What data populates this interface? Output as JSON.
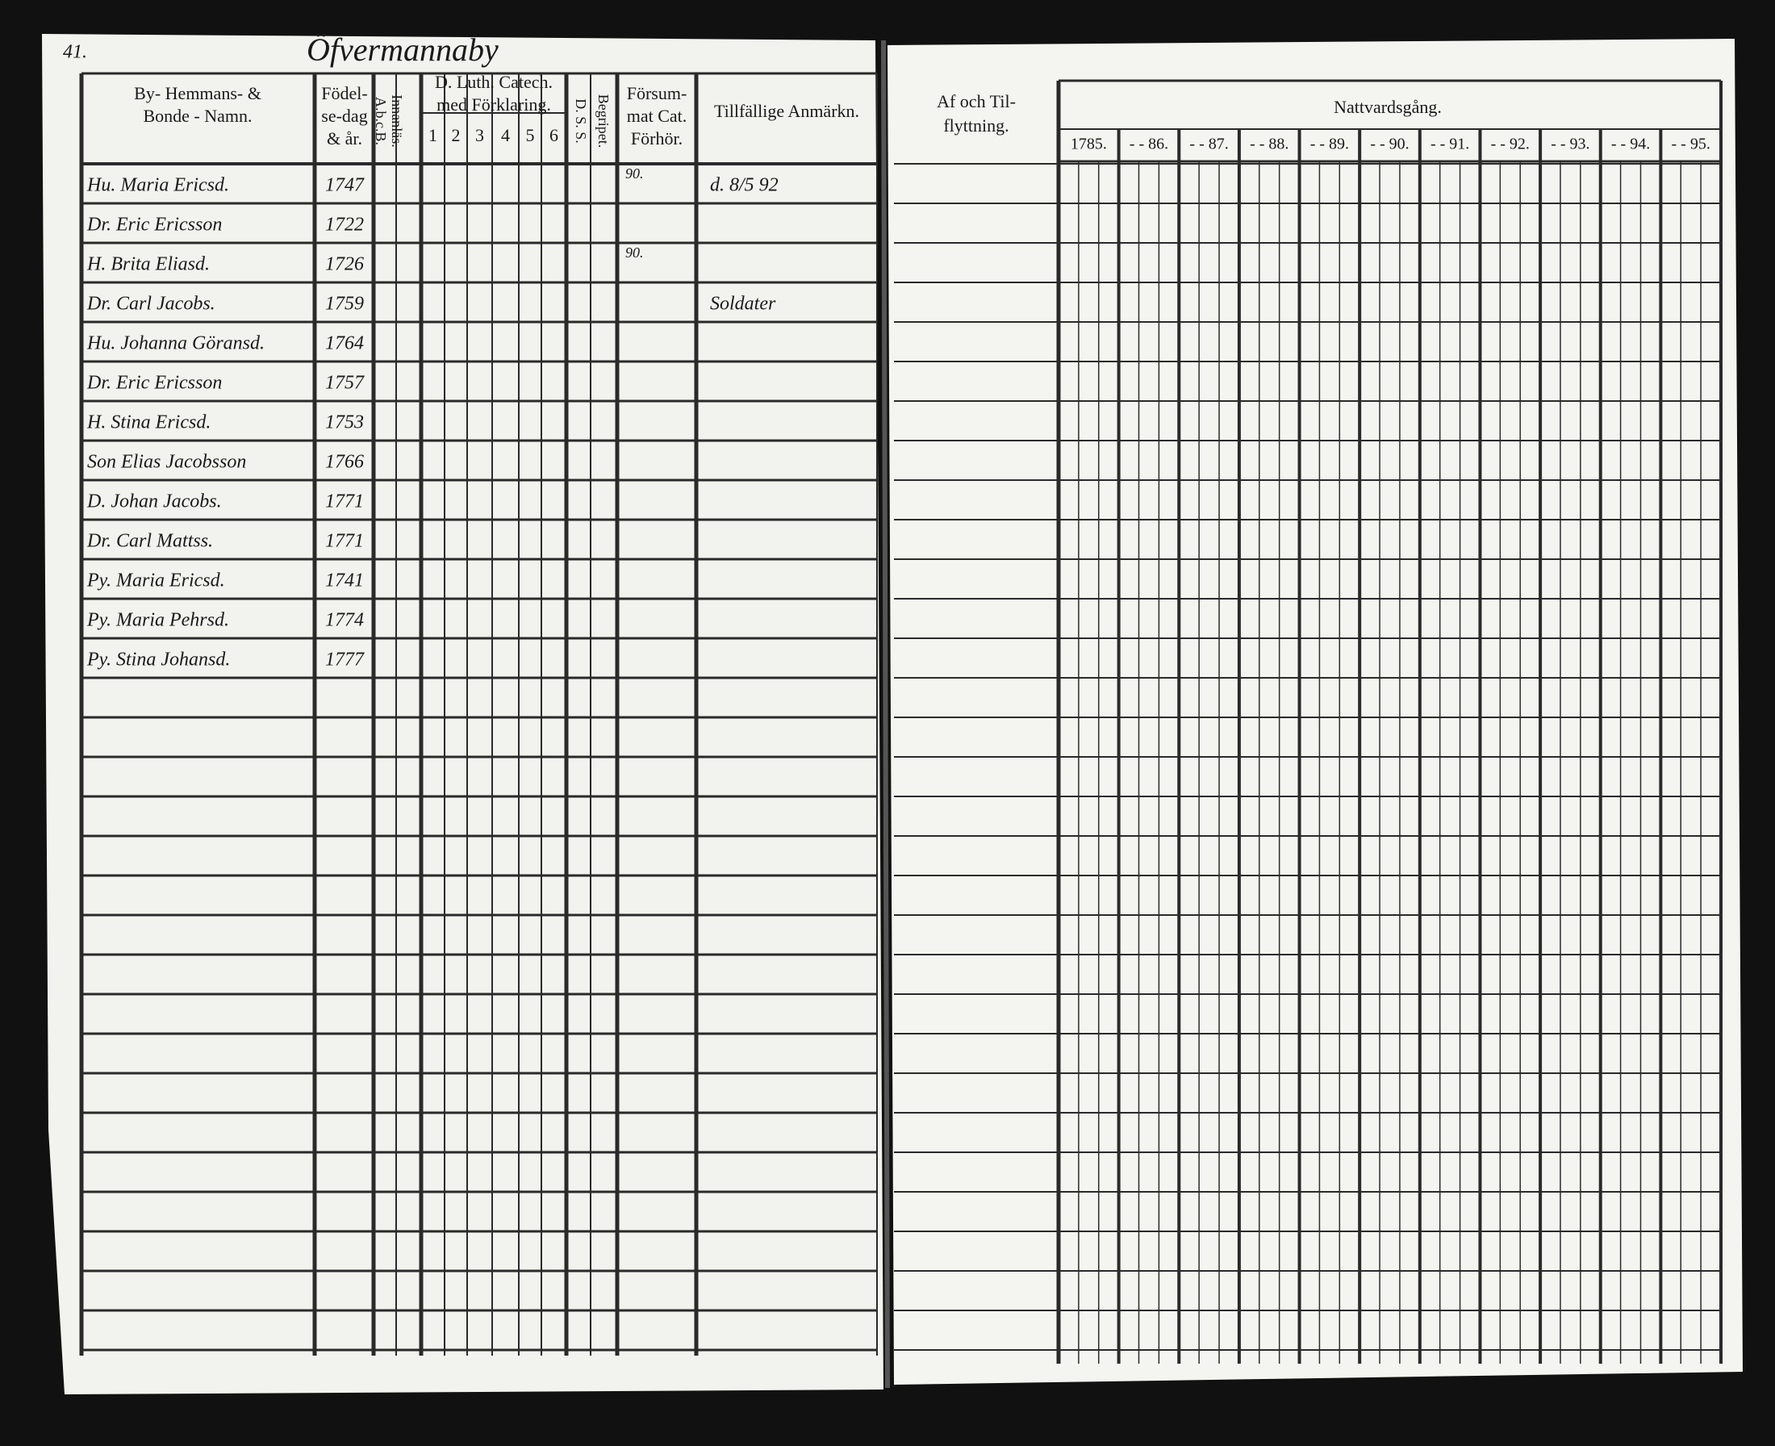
{
  "page_number": "41.",
  "village": "Öfvermannaby",
  "left_headers": [
    [
      "By- Hemmans- &",
      "Bonde - Namn."
    ],
    [
      "Födel-",
      "se-dag",
      "& år."
    ],
    [
      "A.b.c.B.",
      "Innanläs."
    ],
    [
      "D. Luth. Catech.",
      "med Förklaring."
    ],
    [
      "D. S. S.",
      "Begripet."
    ],
    [
      "Försum-",
      "mat Cat.",
      "Förhör."
    ],
    [
      "Tillfällige Anmärkn."
    ]
  ],
  "catechism_parts": [
    "1",
    "2",
    "3",
    "4",
    "5",
    "6"
  ],
  "right_headers": [
    [
      "Af och Til-",
      "flyttning."
    ],
    [
      "Nattvardsgång."
    ]
  ],
  "years": [
    "1785.",
    "- - 86.",
    "- - 87.",
    "- - 88.",
    "- - 89.",
    "- - 90.",
    "- - 91.",
    "- - 92.",
    "- - 93.",
    "- - 94.",
    "- - 95."
  ],
  "rows": [
    {
      "name": "Hu. Maria Ericsd.",
      "born": "1747",
      "forsummat": "90.",
      "remark": "d. 8/5 92"
    },
    {
      "name": "Dr. Eric Ericsson",
      "born": "1722"
    },
    {
      "name": "H. Brita Eliasd.",
      "born": "1726",
      "forsummat": "90."
    },
    {
      "name": "Dr. Carl Jacobs.",
      "born": "1759",
      "remark": "Soldater"
    },
    {
      "name": "Hu. Johanna Göransd.",
      "born": "1764"
    },
    {
      "name": "Dr. Eric Ericsson",
      "born": "1757"
    },
    {
      "name": "H. Stina Ericsd.",
      "born": "1753"
    },
    {
      "name": "Son Elias Jacobsson",
      "born": "1766"
    },
    {
      "name": "D. Johan Jacobs.",
      "born": "1771"
    },
    {
      "name": "Dr. Carl Mattss.",
      "born": "1771"
    },
    {
      "name": "Py. Maria Ericsd.",
      "born": "1741"
    },
    {
      "name": "Py. Maria Pehrsd.",
      "born": "1774"
    },
    {
      "name": "Py. Stina Johansd.",
      "born": "1777"
    }
  ]
}
